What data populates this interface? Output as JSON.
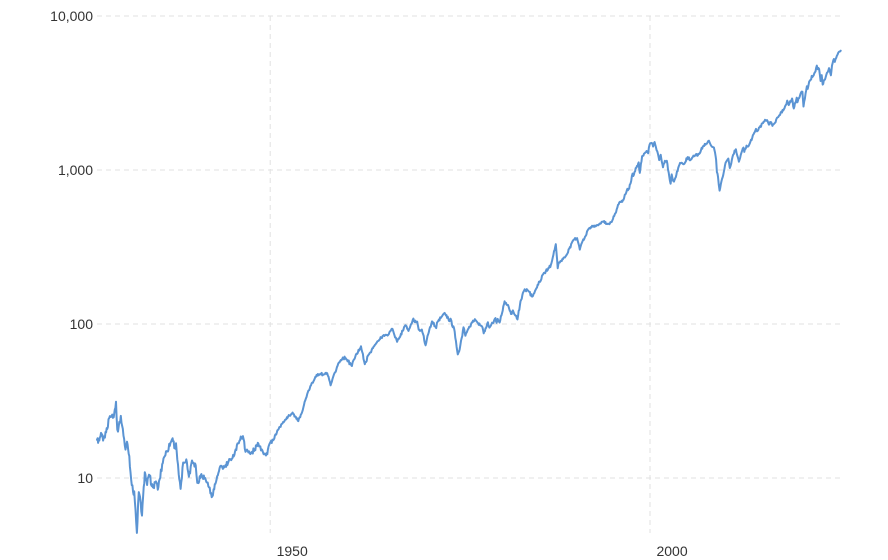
{
  "chart": {
    "background": "#ffffff",
    "grid_color": "#e1e1e1",
    "line_color": "#5b94d3",
    "label_color": "#333333",
    "y_axis": {
      "scale": "log",
      "ticks": [
        {
          "label": "10,000",
          "value": 10000
        },
        {
          "label": "1,000",
          "value": 1000
        },
        {
          "label": "100",
          "value": 100
        },
        {
          "label": "10",
          "value": 10
        }
      ]
    },
    "x_axis": {
      "ticks": [
        {
          "label": "1950",
          "value": 1950
        },
        {
          "label": "2000",
          "value": 2000
        }
      ]
    }
  },
  "chart_data": {
    "type": "line",
    "title": "",
    "xlabel": "",
    "ylabel": "",
    "legend": "none",
    "grid": "dashed",
    "x_range": [
      1927.2,
      2025.1
    ],
    "y_range": [
      4.3,
      10000
    ],
    "y_scale": "log",
    "points": [
      [
        1927.2,
        17.7
      ],
      [
        1927.5,
        17.5
      ],
      [
        1927.8,
        19.4
      ],
      [
        1928.0,
        17.5
      ],
      [
        1928.4,
        19.8
      ],
      [
        1928.8,
        24.4
      ],
      [
        1929.0,
        24.9
      ],
      [
        1929.2,
        25.8
      ],
      [
        1929.4,
        24.8
      ],
      [
        1929.7,
        31.3
      ],
      [
        1929.87,
        20.6
      ],
      [
        1930.05,
        21.4
      ],
      [
        1930.33,
        25.3
      ],
      [
        1930.6,
        20.9
      ],
      [
        1930.95,
        15.3
      ],
      [
        1931.15,
        17.2
      ],
      [
        1931.45,
        13.9
      ],
      [
        1931.7,
        9.7
      ],
      [
        1931.95,
        8.1
      ],
      [
        1932.1,
        8.2
      ],
      [
        1932.45,
        4.4
      ],
      [
        1932.7,
        8.1
      ],
      [
        1932.95,
        6.9
      ],
      [
        1933.12,
        5.7
      ],
      [
        1933.5,
        10.9
      ],
      [
        1933.8,
        9.0
      ],
      [
        1933.95,
        10.1
      ],
      [
        1934.05,
        10.5
      ],
      [
        1934.55,
        8.7
      ],
      [
        1934.95,
        9.5
      ],
      [
        1935.2,
        8.4
      ],
      [
        1935.95,
        13.4
      ],
      [
        1936.95,
        17.2
      ],
      [
        1937.15,
        18.1
      ],
      [
        1937.45,
        15.6
      ],
      [
        1937.6,
        16.8
      ],
      [
        1937.95,
        10.6
      ],
      [
        1938.2,
        8.5
      ],
      [
        1938.55,
        12.6
      ],
      [
        1938.95,
        13.2
      ],
      [
        1939.3,
        10.2
      ],
      [
        1939.7,
        13.0
      ],
      [
        1939.95,
        12.5
      ],
      [
        1940.2,
        12.1
      ],
      [
        1940.4,
        9.3
      ],
      [
        1940.95,
        10.6
      ],
      [
        1941.5,
        9.8
      ],
      [
        1941.95,
        8.7
      ],
      [
        1942.3,
        7.5
      ],
      [
        1942.95,
        9.8
      ],
      [
        1943.5,
        12.0
      ],
      [
        1943.95,
        11.7
      ],
      [
        1944.95,
        13.3
      ],
      [
        1945.95,
        17.4
      ],
      [
        1946.4,
        18.7
      ],
      [
        1946.75,
        14.8
      ],
      [
        1946.95,
        15.3
      ],
      [
        1947.4,
        14.3
      ],
      [
        1947.95,
        15.3
      ],
      [
        1948.45,
        16.7
      ],
      [
        1948.95,
        15.2
      ],
      [
        1949.45,
        14.0
      ],
      [
        1949.95,
        16.8
      ],
      [
        1950.45,
        17.7
      ],
      [
        1950.95,
        20.4
      ],
      [
        1951.95,
        23.8
      ],
      [
        1952.95,
        26.6
      ],
      [
        1953.7,
        23.4
      ],
      [
        1953.95,
        24.8
      ],
      [
        1954.95,
        36.0
      ],
      [
        1955.95,
        45.5
      ],
      [
        1956.6,
        47.5
      ],
      [
        1956.95,
        46.7
      ],
      [
        1957.5,
        47.9
      ],
      [
        1957.95,
        40.0
      ],
      [
        1958.95,
        55.2
      ],
      [
        1959.55,
        60.5
      ],
      [
        1959.95,
        59.9
      ],
      [
        1960.75,
        53.4
      ],
      [
        1960.95,
        58.1
      ],
      [
        1961.95,
        71.6
      ],
      [
        1962.45,
        54.8
      ],
      [
        1962.95,
        63.1
      ],
      [
        1963.95,
        75.0
      ],
      [
        1964.95,
        84.8
      ],
      [
        1965.45,
        84.1
      ],
      [
        1965.95,
        92.4
      ],
      [
        1966.1,
        92.9
      ],
      [
        1966.7,
        76.6
      ],
      [
        1966.95,
        80.3
      ],
      [
        1967.7,
        96.7
      ],
      [
        1967.95,
        96.5
      ],
      [
        1968.2,
        90.2
      ],
      [
        1968.85,
        108.4
      ],
      [
        1968.95,
        103.9
      ],
      [
        1969.35,
        103.5
      ],
      [
        1969.55,
        91.8
      ],
      [
        1969.95,
        92.1
      ],
      [
        1970.45,
        72.7
      ],
      [
        1970.95,
        92.2
      ],
      [
        1971.3,
        104.0
      ],
      [
        1971.85,
        94.0
      ],
      [
        1971.95,
        102.1
      ],
      [
        1972.95,
        118.1
      ],
      [
        1973.05,
        116.0
      ],
      [
        1973.6,
        104.3
      ],
      [
        1973.75,
        108.3
      ],
      [
        1973.95,
        97.6
      ],
      [
        1974.2,
        94.0
      ],
      [
        1974.7,
        63.5
      ],
      [
        1974.95,
        68.6
      ],
      [
        1975.45,
        95.2
      ],
      [
        1975.7,
        83.9
      ],
      [
        1975.95,
        90.2
      ],
      [
        1976.7,
        105.2
      ],
      [
        1976.95,
        107.5
      ],
      [
        1977.95,
        95.1
      ],
      [
        1978.1,
        87.0
      ],
      [
        1978.65,
        102.5
      ],
      [
        1978.85,
        94.7
      ],
      [
        1978.95,
        96.1
      ],
      [
        1979.65,
        109.3
      ],
      [
        1979.8,
        101.8
      ],
      [
        1979.95,
        107.9
      ],
      [
        1980.2,
        102.1
      ],
      [
        1980.85,
        140.5
      ],
      [
        1980.95,
        135.8
      ],
      [
        1981.3,
        132.8
      ],
      [
        1981.7,
        116.2
      ],
      [
        1981.95,
        122.6
      ],
      [
        1982.55,
        107.1
      ],
      [
        1982.95,
        140.6
      ],
      [
        1983.5,
        168.1
      ],
      [
        1983.95,
        164.9
      ],
      [
        1984.5,
        150.7
      ],
      [
        1984.95,
        167.2
      ],
      [
        1985.95,
        211.3
      ],
      [
        1986.7,
        231.3
      ],
      [
        1986.95,
        242.2
      ],
      [
        1987.6,
        329.8
      ],
      [
        1987.85,
        230.3
      ],
      [
        1987.95,
        247.1
      ],
      [
        1988.95,
        277.7
      ],
      [
        1989.95,
        353.4
      ],
      [
        1990.4,
        360.7
      ],
      [
        1990.75,
        304.0
      ],
      [
        1990.95,
        330.2
      ],
      [
        1991.95,
        417.1
      ],
      [
        1992.95,
        435.7
      ],
      [
        1993.95,
        466.5
      ],
      [
        1994.2,
        445.8
      ],
      [
        1994.95,
        459.3
      ],
      [
        1995.95,
        615.9
      ],
      [
        1996.5,
        640.0
      ],
      [
        1996.95,
        740.7
      ],
      [
        1997.25,
        757.1
      ],
      [
        1997.7,
        947.3
      ],
      [
        1997.8,
        914.6
      ],
      [
        1997.95,
        970.4
      ],
      [
        1998.5,
        1120.7
      ],
      [
        1998.65,
        957.3
      ],
      [
        1998.95,
        1229.2
      ],
      [
        1999.55,
        1328.7
      ],
      [
        1999.75,
        1282.7
      ],
      [
        1999.95,
        1469.3
      ],
      [
        2000.2,
        1498.6
      ],
      [
        2000.4,
        1420.6
      ],
      [
        2000.6,
        1517.7
      ],
      [
        2000.95,
        1320.3
      ],
      [
        2001.2,
        1160.3
      ],
      [
        2001.4,
        1255.8
      ],
      [
        2001.7,
        1040.9
      ],
      [
        2001.95,
        1148.1
      ],
      [
        2002.2,
        1147.4
      ],
      [
        2002.7,
        815.3
      ],
      [
        2002.85,
        936.3
      ],
      [
        2002.95,
        879.8
      ],
      [
        2003.15,
        841.2
      ],
      [
        2003.95,
        1111.9
      ],
      [
        2004.55,
        1101.7
      ],
      [
        2004.95,
        1211.9
      ],
      [
        2005.3,
        1156.9
      ],
      [
        2005.95,
        1248.3
      ],
      [
        2006.45,
        1270.1
      ],
      [
        2006.95,
        1418.3
      ],
      [
        2007.55,
        1503.4
      ],
      [
        2007.75,
        1549.4
      ],
      [
        2007.95,
        1468.4
      ],
      [
        2008.4,
        1400.4
      ],
      [
        2008.7,
        1166.4
      ],
      [
        2008.8,
        968.8
      ],
      [
        2008.95,
        903.3
      ],
      [
        2009.15,
        735.1
      ],
      [
        2009.95,
        1115.1
      ],
      [
        2010.3,
        1186.7
      ],
      [
        2010.5,
        1030.7
      ],
      [
        2010.95,
        1257.6
      ],
      [
        2011.3,
        1363.6
      ],
      [
        2011.7,
        1131.4
      ],
      [
        2011.95,
        1257.6
      ],
      [
        2012.3,
        1397.9
      ],
      [
        2012.4,
        1310.3
      ],
      [
        2012.7,
        1440.7
      ],
      [
        2012.95,
        1426.2
      ],
      [
        2013.95,
        1848.4
      ],
      [
        2014.08,
        1782.6
      ],
      [
        2014.95,
        2058.9
      ],
      [
        2015.4,
        2107.4
      ],
      [
        2015.65,
        1972.2
      ],
      [
        2015.95,
        2043.9
      ],
      [
        2016.1,
        1932.2
      ],
      [
        2016.95,
        2238.8
      ],
      [
        2017.95,
        2673.6
      ],
      [
        2018.05,
        2823.8
      ],
      [
        2018.25,
        2640.9
      ],
      [
        2018.7,
        2914.0
      ],
      [
        2018.92,
        2506.9
      ],
      [
        2019.3,
        2945.8
      ],
      [
        2019.4,
        2752.1
      ],
      [
        2019.95,
        3230.8
      ],
      [
        2020.05,
        3225.5
      ],
      [
        2020.2,
        2584.6
      ],
      [
        2020.65,
        3500.3
      ],
      [
        2020.75,
        3363.0
      ],
      [
        2020.95,
        3756.1
      ],
      [
        2021.7,
        4307.5
      ],
      [
        2021.95,
        4766.2
      ],
      [
        2022.05,
        4515.6
      ],
      [
        2022.25,
        4530.4
      ],
      [
        2022.45,
        3785.4
      ],
      [
        2022.6,
        4130.3
      ],
      [
        2022.72,
        3585.6
      ],
      [
        2022.95,
        3839.5
      ],
      [
        2023.1,
        3970.2
      ],
      [
        2023.55,
        4589.0
      ],
      [
        2023.8,
        4117.4
      ],
      [
        2023.95,
        4769.8
      ],
      [
        2024.2,
        5254.4
      ],
      [
        2024.32,
        5035.7
      ],
      [
        2024.6,
        5522.3
      ],
      [
        2024.95,
        5881.6
      ],
      [
        2025.1,
        5954.5
      ]
    ]
  }
}
